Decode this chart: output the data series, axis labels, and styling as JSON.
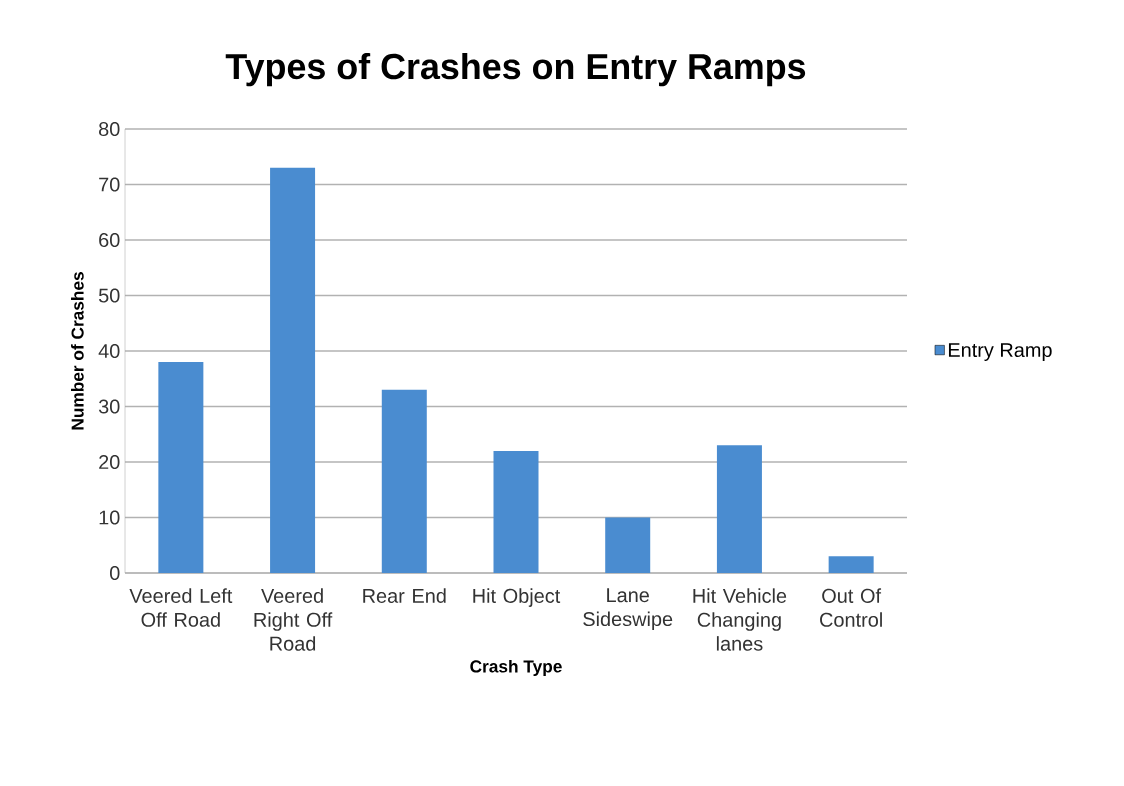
{
  "chart_data": {
    "type": "bar",
    "title": "Types of Crashes on Entry Ramps",
    "xlabel": "Crash Type",
    "ylabel": "Number of Crashes",
    "categories": [
      "Veered Left Off Road",
      "Veered Right Off Road",
      "Rear End",
      "Hit Object",
      "Lane Sideswipe",
      "Hit Vehicle Changing lanes",
      "Out Of Control"
    ],
    "series": [
      {
        "name": "Entry Ramp",
        "color": "#4a8cd0",
        "values": [
          38,
          73,
          33,
          22,
          10,
          23,
          3
        ]
      }
    ],
    "ylim": [
      0,
      80
    ],
    "yticks": [
      0,
      10,
      20,
      30,
      40,
      50,
      60,
      70,
      80
    ],
    "grid": "y",
    "legend": "right"
  }
}
